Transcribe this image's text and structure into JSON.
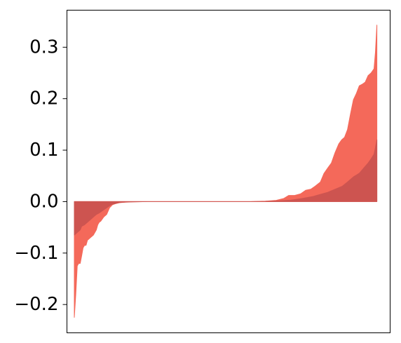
{
  "chart_data": {
    "type": "area",
    "title": "",
    "xlabel": "",
    "ylabel": "",
    "xlim": [
      -10,
      430
    ],
    "ylim": [
      -0.255,
      0.372
    ],
    "x_ticks_visible": false,
    "grid": false,
    "legend": "none",
    "y_ticks": [
      {
        "value": 0.3,
        "label": "0.3"
      },
      {
        "value": 0.2,
        "label": "0.2"
      },
      {
        "value": 0.1,
        "label": "0.1"
      },
      {
        "value": 0.0,
        "label": "0.0"
      },
      {
        "value": -0.1,
        "label": "−0.1"
      },
      {
        "value": -0.2,
        "label": "−0.2"
      }
    ],
    "series": [
      {
        "color": "#f4695a",
        "points": [
          [
            0,
            -0.225
          ],
          [
            2,
            -0.18
          ],
          [
            4,
            -0.125
          ],
          [
            6,
            -0.12
          ],
          [
            8,
            -0.12
          ],
          [
            10,
            -0.105
          ],
          [
            12,
            -0.09
          ],
          [
            14,
            -0.085
          ],
          [
            16,
            -0.085
          ],
          [
            18,
            -0.075
          ],
          [
            22,
            -0.07
          ],
          [
            26,
            -0.065
          ],
          [
            30,
            -0.055
          ],
          [
            32,
            -0.045
          ],
          [
            34,
            -0.04
          ],
          [
            36,
            -0.038
          ],
          [
            40,
            -0.03
          ],
          [
            44,
            -0.025
          ],
          [
            48,
            -0.012
          ],
          [
            52,
            -0.006
          ],
          [
            56,
            -0.004
          ],
          [
            62,
            -0.002
          ],
          [
            70,
            -0.001
          ],
          [
            80,
            -0.0005
          ],
          [
            100,
            0.0
          ],
          [
            240,
            0.0
          ],
          [
            260,
            0.0008
          ],
          [
            275,
            0.0025
          ],
          [
            285,
            0.006
          ],
          [
            292,
            0.012
          ],
          [
            300,
            0.012
          ],
          [
            308,
            0.015
          ],
          [
            315,
            0.022
          ],
          [
            322,
            0.024
          ],
          [
            328,
            0.03
          ],
          [
            335,
            0.038
          ],
          [
            340,
            0.055
          ],
          [
            345,
            0.065
          ],
          [
            350,
            0.075
          ],
          [
            355,
            0.095
          ],
          [
            360,
            0.112
          ],
          [
            364,
            0.12
          ],
          [
            368,
            0.125
          ],
          [
            372,
            0.14
          ],
          [
            376,
            0.17
          ],
          [
            380,
            0.198
          ],
          [
            384,
            0.21
          ],
          [
            388,
            0.225
          ],
          [
            392,
            0.228
          ],
          [
            396,
            0.232
          ],
          [
            400,
            0.245
          ],
          [
            404,
            0.25
          ],
          [
            408,
            0.258
          ],
          [
            410,
            0.29
          ],
          [
            412,
            0.343
          ]
        ]
      },
      {
        "color": "#cd5450",
        "points": [
          [
            0,
            -0.065
          ],
          [
            4,
            -0.06
          ],
          [
            8,
            -0.055
          ],
          [
            10,
            -0.048
          ],
          [
            14,
            -0.045
          ],
          [
            18,
            -0.04
          ],
          [
            22,
            -0.035
          ],
          [
            26,
            -0.03
          ],
          [
            30,
            -0.025
          ],
          [
            34,
            -0.022
          ],
          [
            38,
            -0.018
          ],
          [
            42,
            -0.014
          ],
          [
            46,
            -0.01
          ],
          [
            50,
            -0.006
          ],
          [
            55,
            -0.004
          ],
          [
            60,
            -0.002
          ],
          [
            70,
            -0.0008
          ],
          [
            85,
            -0.0003
          ],
          [
            100,
            0.0
          ],
          [
            240,
            0.0
          ],
          [
            260,
            0.0005
          ],
          [
            280,
            0.0015
          ],
          [
            295,
            0.003
          ],
          [
            310,
            0.006
          ],
          [
            325,
            0.01
          ],
          [
            335,
            0.014
          ],
          [
            345,
            0.018
          ],
          [
            355,
            0.024
          ],
          [
            365,
            0.03
          ],
          [
            372,
            0.038
          ],
          [
            380,
            0.048
          ],
          [
            388,
            0.055
          ],
          [
            394,
            0.065
          ],
          [
            400,
            0.075
          ],
          [
            404,
            0.083
          ],
          [
            408,
            0.092
          ],
          [
            410,
            0.105
          ],
          [
            412,
            0.12
          ]
        ]
      }
    ]
  }
}
